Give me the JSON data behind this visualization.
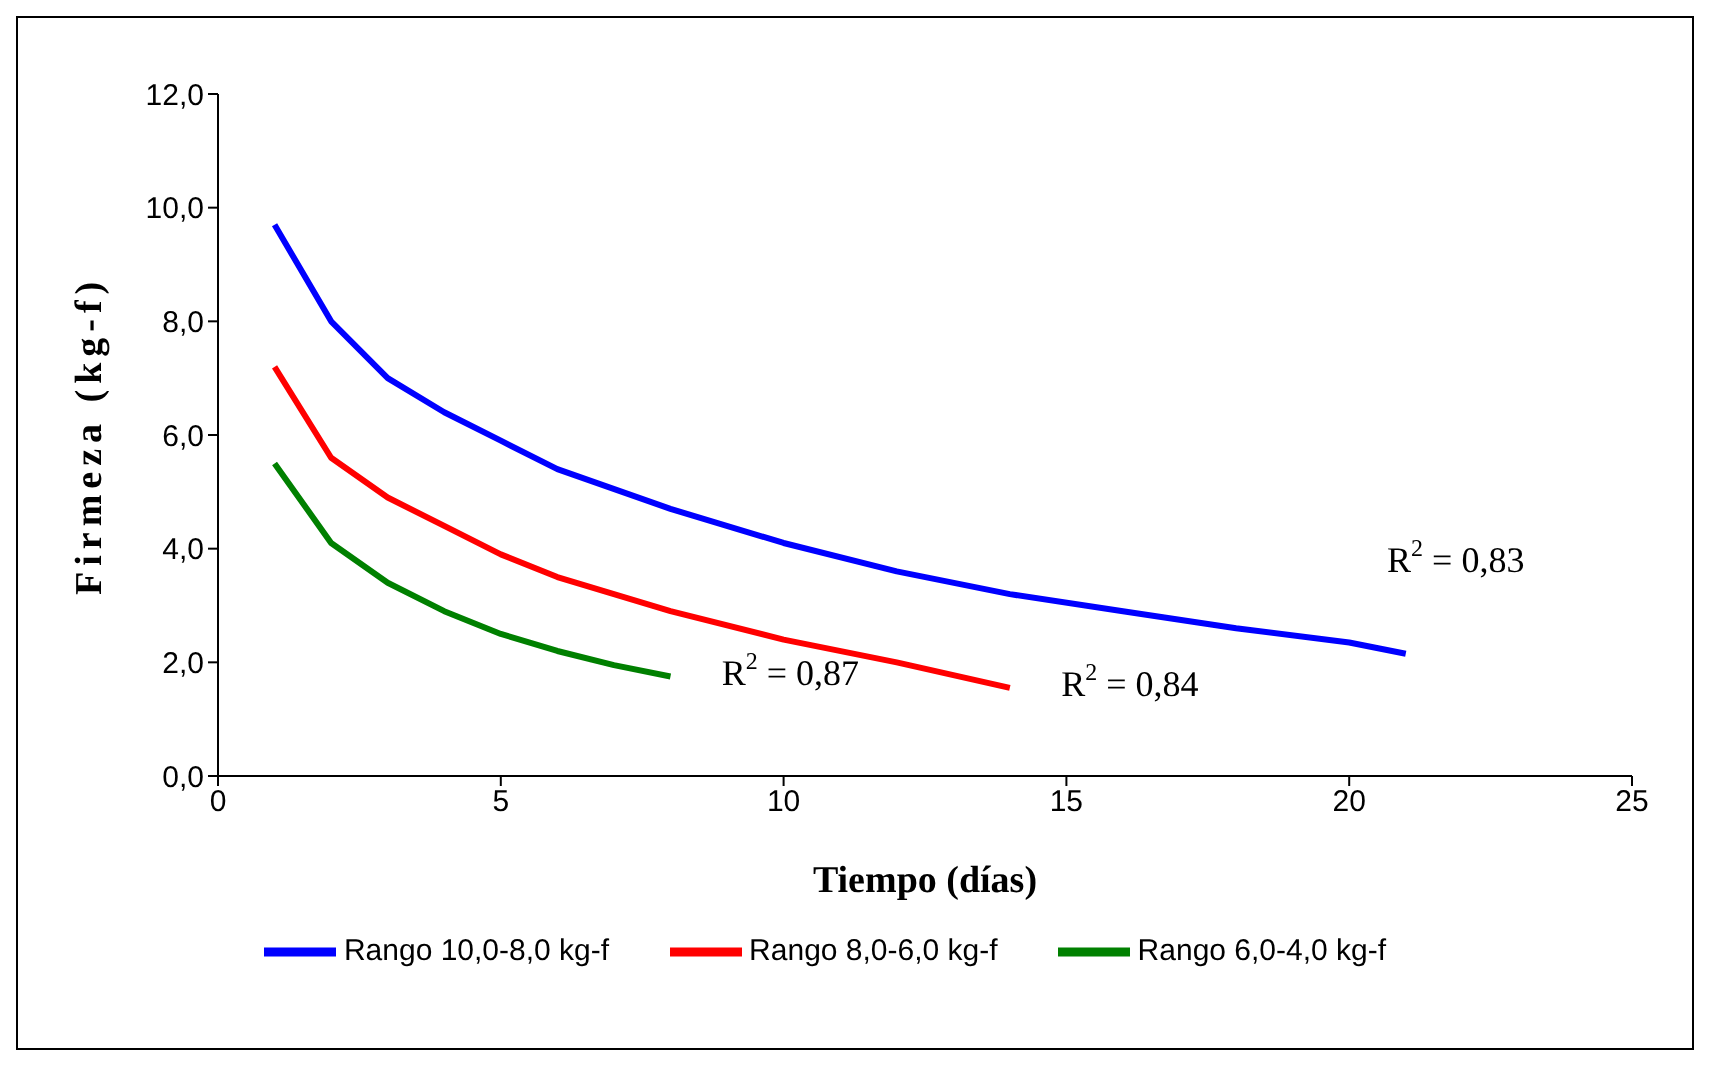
{
  "chart_data": {
    "type": "line",
    "xlabel": "Tiempo (días)",
    "ylabel": "Firmeza (kg-f)",
    "series": [
      {
        "name": "Rango 10,0-8,0 kg-f",
        "color": "#0000ff",
        "x": [
          1,
          2,
          3,
          4,
          5,
          6,
          8,
          10,
          12,
          14,
          16,
          18,
          20,
          21
        ],
        "values": [
          9.7,
          8.0,
          7.0,
          6.4,
          5.9,
          5.4,
          4.7,
          4.1,
          3.6,
          3.2,
          2.9,
          2.6,
          2.35,
          2.15
        ]
      },
      {
        "name": "Rango 8,0-6,0 kg-f",
        "color": "#ff0000",
        "x": [
          1,
          2,
          3,
          4,
          5,
          6,
          8,
          10,
          12,
          14
        ],
        "values": [
          7.2,
          5.6,
          4.9,
          4.4,
          3.9,
          3.5,
          2.9,
          2.4,
          2.0,
          1.55
        ]
      },
      {
        "name": "Rango 6,0-4,0 kg-f",
        "color": "#008000",
        "x": [
          1,
          2,
          3,
          4,
          5,
          6,
          7,
          8
        ],
        "values": [
          5.5,
          4.1,
          3.4,
          2.9,
          2.5,
          2.2,
          1.95,
          1.75
        ]
      }
    ],
    "annotations": [
      "R$^{2}$ = 0,83",
      "R$^{2}$ = 0,84",
      "R$^{2}$ = 0,87"
    ],
    "xlim": [
      0,
      25
    ],
    "xticks": [
      0,
      5,
      10,
      15,
      20,
      25
    ],
    "ylim": [
      0,
      12
    ],
    "yticks": [
      {
        "value": 0,
        "label": "0,0"
      },
      {
        "value": 2,
        "label": "2,0"
      },
      {
        "value": 4,
        "label": "4,0"
      },
      {
        "value": 6,
        "label": "6,0"
      },
      {
        "value": 8,
        "label": "8,0"
      },
      {
        "value": 10,
        "label": "10,0"
      },
      {
        "value": 12,
        "label": "12,0"
      }
    ],
    "grid": false,
    "legend": "bottom",
    "marker": "none",
    "line_style": "solid"
  }
}
